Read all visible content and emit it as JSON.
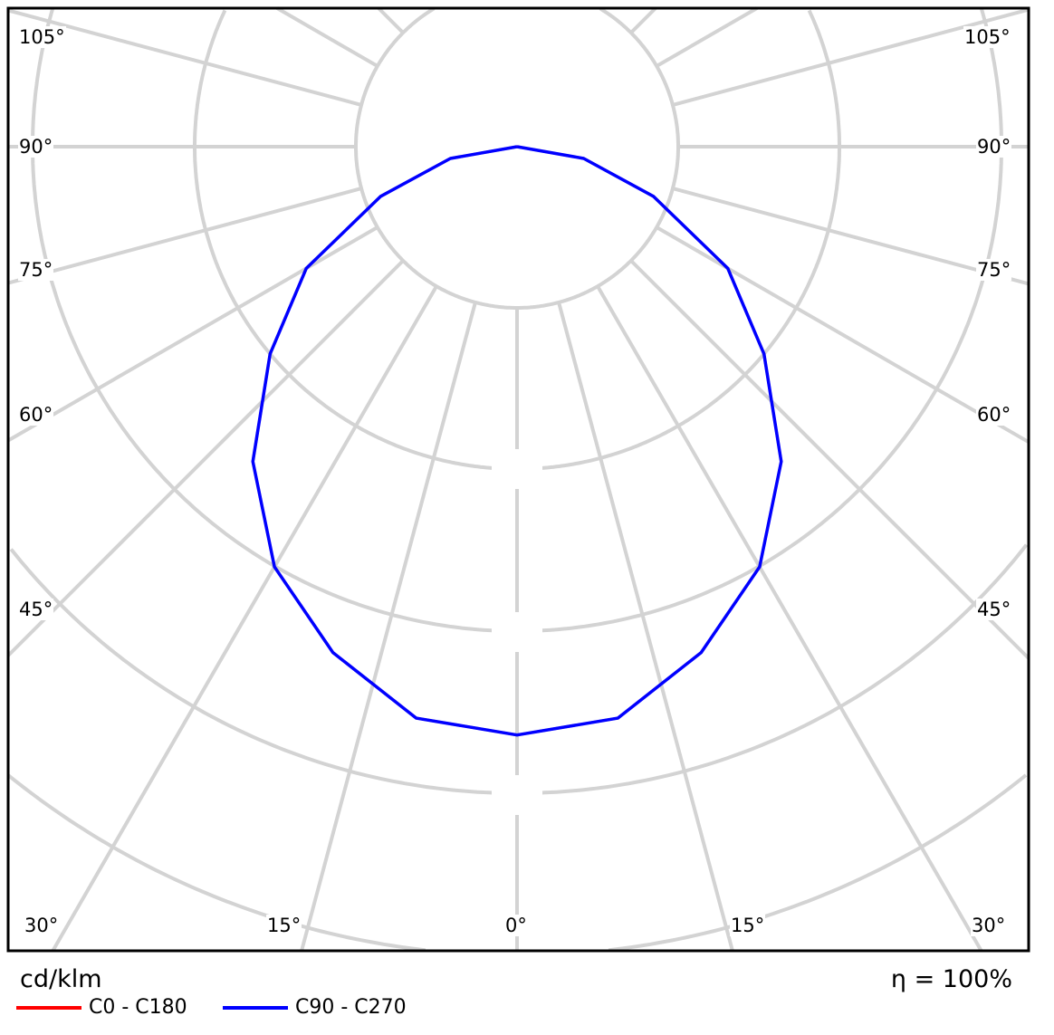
{
  "chart_data": {
    "type": "polar",
    "unit_label": "cd/klm",
    "efficiency_label": "η = 100%",
    "angle_labels_left": [
      "105°",
      "90°",
      "75°",
      "60°",
      "45°",
      "30°"
    ],
    "angle_labels_right": [
      "105°",
      "90°",
      "75°",
      "60°",
      "45°",
      "30°"
    ],
    "angle_labels_bottom": [
      "15°",
      "0°",
      "15°"
    ],
    "angles": [
      0,
      10,
      20,
      30,
      40,
      50,
      60,
      70,
      80,
      90
    ],
    "series": [
      {
        "name": "C0 - C180",
        "color": "#ff0000",
        "values": [
          365,
          360,
          334,
          301,
          255,
          200,
          151,
          90,
          42,
          0
        ]
      },
      {
        "name": "C90 - C270",
        "color": "#0000ff",
        "values": [
          365,
          360,
          334,
          301,
          255,
          200,
          151,
          90,
          42,
          0
        ]
      }
    ],
    "ring_step": 100,
    "spoke_step_deg": 15,
    "grid": true
  }
}
